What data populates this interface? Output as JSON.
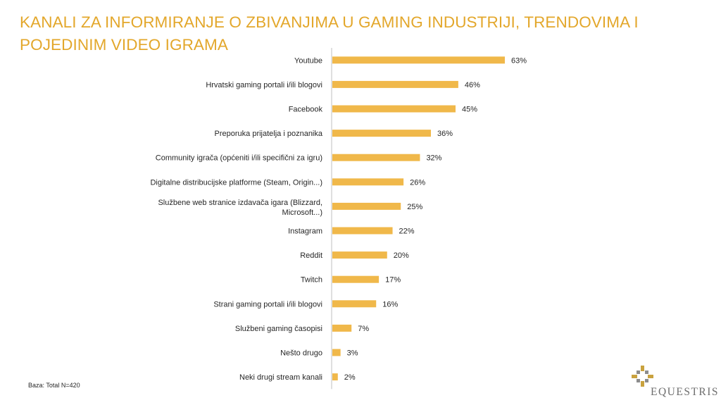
{
  "title": "KANALI ZA INFORMIRANJE O ZBIVANJIMA U GAMING INDUSTRIJI, TRENDOVIMA I POJEDINIM VIDEO IGRAMA",
  "base_note": "Baza: Total N=420",
  "logo": {
    "text": "EQUESTRIS"
  },
  "colors": {
    "bar": "#f0b84a",
    "title": "#e3a72b",
    "axis": "#bfbfbf",
    "text": "#262626"
  },
  "chart_data": {
    "type": "bar",
    "orientation": "horizontal",
    "title": "KANALI ZA INFORMIRANJE O ZBIVANJIMA U GAMING INDUSTRIJI, TRENDOVIMA I POJEDINIM VIDEO IGRAMA",
    "xlabel": "",
    "ylabel": "",
    "xlim": [
      0,
      63
    ],
    "value_suffix": "%",
    "categories": [
      [
        "Youtube"
      ],
      [
        "Hrvatski gaming portali i/ili blogovi"
      ],
      [
        "Facebook"
      ],
      [
        "Preporuka prijatelja i poznanika"
      ],
      [
        "Community igrača (općeniti i/ili specifični za igru)"
      ],
      [
        "Digitalne distribucijske platforme (Steam, Origin...)"
      ],
      [
        "Službene web stranice izdavača igara (Blizzard,",
        "Microsoft...)"
      ],
      [
        "Instagram"
      ],
      [
        "Reddit"
      ],
      [
        "Twitch"
      ],
      [
        "Strani gaming portali i/ili blogovi"
      ],
      [
        "Službeni gaming časopisi"
      ],
      [
        "Nešto drugo"
      ],
      [
        "Neki drugi stream kanali"
      ]
    ],
    "values": [
      63,
      46,
      45,
      36,
      32,
      26,
      25,
      22,
      20,
      17,
      16,
      7,
      3,
      2
    ],
    "value_labels": [
      "63%",
      "46%",
      "45%",
      "36%",
      "32%",
      "26%",
      "25%",
      "22%",
      "20%",
      "17%",
      "16%",
      "7%",
      "3%",
      "2%"
    ]
  }
}
